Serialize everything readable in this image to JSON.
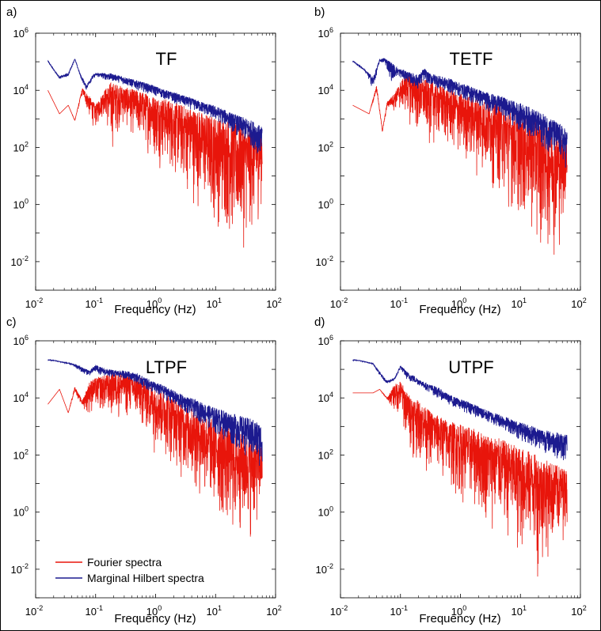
{
  "figure": {
    "border_color": "#000000"
  },
  "colors": {
    "fourier": "#e8150b",
    "hilbert": "#1c1a8f"
  },
  "legend": {
    "fourier_label": "Fourier spectra",
    "hilbert_label": "Marginal Hilbert spectra",
    "placement": "bottom-left of panel c"
  },
  "chart_data": [
    {
      "panel_label": "a)",
      "type": "line",
      "title": "TF",
      "xlabel": "Frequency (Hz)",
      "ylabel": "",
      "x_scale": "log",
      "y_scale": "log",
      "xlim": [
        0.01,
        100
      ],
      "ylim": [
        0.001,
        1000000
      ],
      "x_tick_labels": [
        "10-2",
        "10-1",
        "100",
        "101",
        "102"
      ],
      "y_tick_labels": [
        "10-2",
        "100",
        "102",
        "104",
        "106"
      ],
      "grid": false,
      "series": [
        {
          "key": "fourier",
          "x": [
            0.016,
            0.025,
            0.035,
            0.045,
            0.06,
            0.08,
            0.1,
            0.14,
            0.18,
            0.25,
            0.35,
            0.5,
            0.7,
            1,
            1.5,
            2,
            3,
            5,
            7,
            10,
            15,
            20,
            30,
            45,
            60
          ],
          "y_min": [
            10000,
            1500,
            3000,
            800,
            6000,
            600,
            300,
            1000,
            20,
            300,
            200,
            80,
            40,
            15,
            8,
            3,
            1,
            0.3,
            0.1,
            0.05,
            0.02,
            0.005,
            0.01,
            0.02,
            0.5
          ],
          "y_max": [
            10000,
            1500,
            3000,
            900,
            12000,
            6000,
            3000,
            10000,
            20000,
            15000,
            12000,
            10000,
            8000,
            6000,
            5000,
            4000,
            3000,
            2000,
            1500,
            1200,
            1000,
            800,
            600,
            500,
            400
          ]
        },
        {
          "key": "hilbert",
          "x": [
            0.016,
            0.02,
            0.025,
            0.035,
            0.045,
            0.055,
            0.07,
            0.085,
            0.1,
            0.13,
            0.17,
            0.22,
            0.3,
            0.4,
            0.5,
            0.7,
            1,
            1.5,
            2,
            3,
            5,
            7,
            10,
            15,
            20,
            30,
            45,
            60
          ],
          "y_min": [
            100000,
            50000,
            25000,
            30000,
            120000,
            30000,
            10000,
            20000,
            30000,
            25000,
            20000,
            20000,
            15000,
            12000,
            10000,
            8000,
            6000,
            4500,
            3500,
            2500,
            1700,
            1200,
            800,
            500,
            300,
            150,
            80,
            30
          ],
          "y_max": [
            110000,
            55000,
            30000,
            40000,
            130000,
            40000,
            15000,
            30000,
            40000,
            40000,
            40000,
            35000,
            30000,
            25000,
            22000,
            18000,
            14000,
            10000,
            8500,
            6500,
            4500,
            3500,
            2800,
            2000,
            1500,
            1100,
            800,
            500
          ]
        }
      ]
    },
    {
      "panel_label": "b)",
      "type": "line",
      "title": "TETF",
      "xlabel": "Frequency (Hz)",
      "ylabel": "",
      "x_scale": "log",
      "y_scale": "log",
      "xlim": [
        0.01,
        100
      ],
      "ylim": [
        0.001,
        1000000
      ],
      "x_tick_labels": [
        "10-2",
        "10-1",
        "100",
        "101",
        "102"
      ],
      "y_tick_labels": [
        "10-2",
        "100",
        "102",
        "104",
        "106"
      ],
      "grid": false,
      "series": [
        {
          "key": "fourier",
          "x": [
            0.016,
            0.03,
            0.04,
            0.05,
            0.06,
            0.08,
            0.1,
            0.13,
            0.18,
            0.25,
            0.35,
            0.5,
            0.7,
            1,
            1.5,
            2,
            3,
            5,
            7,
            10,
            15,
            20,
            30,
            45,
            60
          ],
          "y_min": [
            3000,
            1500,
            8000,
            300,
            2000,
            1500,
            1000,
            600,
            100,
            100,
            60,
            40,
            25,
            12,
            8,
            5,
            2,
            0.5,
            0.2,
            0.05,
            0.02,
            0.01,
            0.005,
            0.01,
            0.5
          ],
          "y_max": [
            3000,
            1500,
            15000,
            400,
            4000,
            8000,
            20000,
            40000,
            30000,
            25000,
            20000,
            15000,
            10000,
            8000,
            6000,
            5000,
            4000,
            3000,
            2000,
            1500,
            1000,
            700,
            500,
            300,
            200
          ]
        },
        {
          "key": "hilbert",
          "x": [
            0.016,
            0.025,
            0.035,
            0.045,
            0.055,
            0.07,
            0.09,
            0.12,
            0.15,
            0.2,
            0.25,
            0.3,
            0.4,
            0.5,
            0.7,
            1,
            1.5,
            2,
            3,
            5,
            7,
            10,
            15,
            20,
            30,
            45,
            60
          ],
          "y_min": [
            100000,
            50000,
            10000,
            100000,
            80000,
            20000,
            30000,
            20000,
            15000,
            10000,
            20000,
            15000,
            12000,
            9000,
            7000,
            5000,
            3500,
            2500,
            1700,
            1000,
            600,
            350,
            200,
            120,
            60,
            30,
            15
          ],
          "y_max": [
            110000,
            55000,
            30000,
            120000,
            140000,
            100000,
            60000,
            50000,
            40000,
            35000,
            60000,
            40000,
            35000,
            30000,
            25000,
            18000,
            14000,
            11000,
            8000,
            6000,
            4500,
            3500,
            2500,
            1800,
            1200,
            700,
            400
          ]
        }
      ]
    },
    {
      "panel_label": "c)",
      "type": "line",
      "title": "LTPF",
      "xlabel": "Frequency (Hz)",
      "ylabel": "",
      "x_scale": "log",
      "y_scale": "log",
      "xlim": [
        0.01,
        100
      ],
      "ylim": [
        0.001,
        1000000
      ],
      "x_tick_labels": [
        "10-2",
        "10-1",
        "100",
        "101",
        "102"
      ],
      "y_tick_labels": [
        "10-2",
        "100",
        "102",
        "104",
        "106"
      ],
      "grid": false,
      "series": [
        {
          "key": "fourier",
          "x": [
            0.016,
            0.025,
            0.035,
            0.045,
            0.06,
            0.08,
            0.1,
            0.13,
            0.18,
            0.25,
            0.35,
            0.5,
            0.7,
            1,
            1.5,
            2,
            3,
            5,
            7,
            10,
            15,
            20,
            30,
            45,
            60
          ],
          "y_min": [
            6000,
            20000,
            3000,
            15000,
            4000,
            1500,
            2000,
            1500,
            1000,
            1000,
            800,
            600,
            200,
            80,
            30,
            15,
            5,
            1,
            0.5,
            0.2,
            0.05,
            0.02,
            0.03,
            0.05,
            0.5
          ],
          "y_max": [
            6000,
            20000,
            3000,
            25000,
            8000,
            40000,
            50000,
            60000,
            70000,
            80000,
            80000,
            60000,
            40000,
            25000,
            15000,
            10000,
            6000,
            3500,
            2500,
            1500,
            1000,
            700,
            500,
            300,
            200
          ]
        },
        {
          "key": "hilbert",
          "x": [
            0.016,
            0.02,
            0.025,
            0.035,
            0.045,
            0.06,
            0.08,
            0.1,
            0.13,
            0.17,
            0.22,
            0.3,
            0.4,
            0.5,
            0.7,
            1,
            1.5,
            2,
            3,
            5,
            7,
            10,
            15,
            20,
            30,
            45,
            60
          ],
          "y_min": [
            200000,
            200000,
            180000,
            150000,
            120000,
            70000,
            60000,
            70000,
            60000,
            50000,
            50000,
            45000,
            40000,
            30000,
            18000,
            12000,
            8000,
            5000,
            3000,
            1500,
            900,
            500,
            300,
            180,
            100,
            50,
            25
          ],
          "y_max": [
            220000,
            210000,
            190000,
            170000,
            150000,
            120000,
            90000,
            150000,
            110000,
            100000,
            90000,
            90000,
            80000,
            70000,
            50000,
            35000,
            25000,
            18000,
            12000,
            8000,
            6000,
            4500,
            3500,
            2800,
            2200,
            1700,
            1200
          ]
        }
      ]
    },
    {
      "panel_label": "d)",
      "type": "line",
      "title": "UTPF",
      "xlabel": "Frequency (Hz)",
      "ylabel": "",
      "x_scale": "log",
      "y_scale": "log",
      "xlim": [
        0.01,
        100
      ],
      "ylim": [
        0.001,
        1000000
      ],
      "x_tick_labels": [
        "10-2",
        "10-1",
        "100",
        "101",
        "102"
      ],
      "y_tick_labels": [
        "10-2",
        "100",
        "102",
        "104",
        "106"
      ],
      "grid": false,
      "series": [
        {
          "key": "fourier",
          "x": [
            0.016,
            0.025,
            0.035,
            0.045,
            0.06,
            0.08,
            0.1,
            0.13,
            0.16,
            0.2,
            0.25,
            0.35,
            0.5,
            0.7,
            1,
            1.5,
            2,
            3,
            5,
            7,
            10,
            15,
            20,
            30,
            45,
            60
          ],
          "y_min": [
            15000,
            15000,
            15000,
            20000,
            8000,
            2000,
            1000,
            100,
            50,
            30,
            20,
            10,
            5,
            2,
            1,
            0.5,
            0.2,
            0.1,
            0.05,
            0.02,
            0.005,
            0.01,
            0.002,
            0.01,
            0.02,
            0.2
          ],
          "y_max": [
            15000,
            15000,
            15000,
            20000,
            10000,
            30000,
            40000,
            15000,
            10000,
            8000,
            5000,
            3000,
            2000,
            1500,
            1200,
            900,
            700,
            500,
            350,
            250,
            180,
            130,
            90,
            60,
            40,
            30
          ]
        },
        {
          "key": "hilbert",
          "x": [
            0.016,
            0.02,
            0.025,
            0.035,
            0.045,
            0.06,
            0.08,
            0.1,
            0.13,
            0.17,
            0.22,
            0.3,
            0.4,
            0.5,
            0.7,
            1,
            1.5,
            2,
            3,
            5,
            7,
            10,
            15,
            20,
            30,
            45,
            60
          ],
          "y_min": [
            200000,
            200000,
            180000,
            150000,
            60000,
            30000,
            40000,
            100000,
            40000,
            30000,
            25000,
            15000,
            10000,
            8000,
            5000,
            3500,
            2500,
            1800,
            1200,
            800,
            500,
            300,
            200,
            150,
            100,
            70,
            40
          ],
          "y_max": [
            220000,
            210000,
            190000,
            160000,
            80000,
            40000,
            50000,
            140000,
            80000,
            60000,
            40000,
            30000,
            25000,
            18000,
            12000,
            9000,
            7000,
            5000,
            3500,
            2500,
            1800,
            1400,
            1100,
            900,
            700,
            600,
            500
          ]
        }
      ]
    }
  ]
}
